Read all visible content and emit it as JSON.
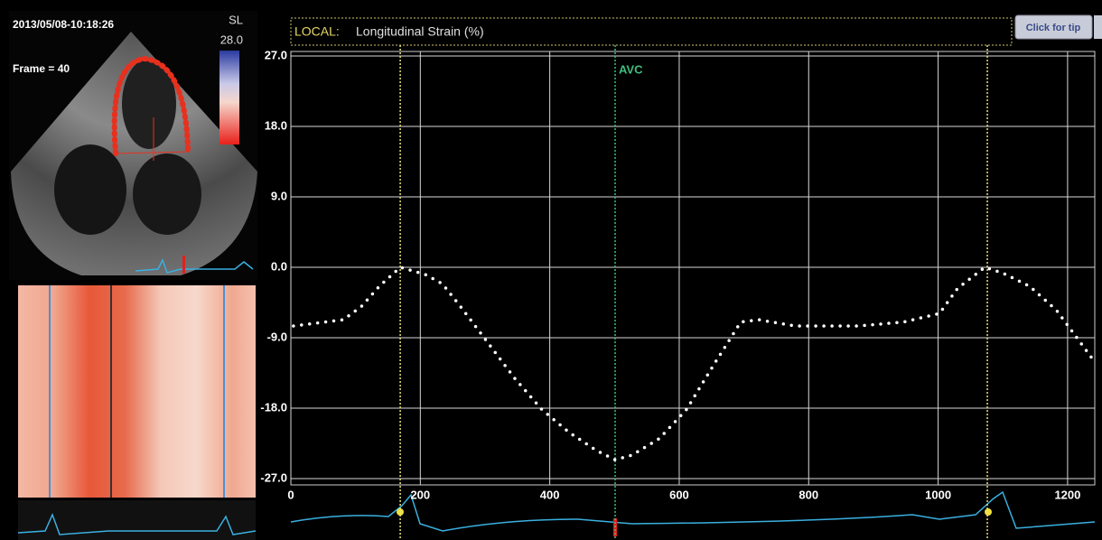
{
  "header": {
    "timestamp": "2013/05/08-10:18:26",
    "frame": "Frame = 40",
    "scale_label": "SL",
    "scale_max": "28.0"
  },
  "button": "Click for tip",
  "chart_data": {
    "type": "line",
    "title_tag": "LOCAL:",
    "title": "Longitudinal Strain (%)",
    "x": [
      4,
      81,
      109,
      137,
      169,
      207,
      234,
      262,
      304,
      346,
      388,
      430,
      472,
      501,
      527,
      569,
      611,
      653,
      695,
      723,
      779,
      876,
      946,
      1002,
      1030,
      1072,
      1099,
      1141,
      1183,
      1242
    ],
    "values": [
      -7.5,
      -6.7,
      -5,
      -2.4,
      0,
      -0.9,
      -2.1,
      -5,
      -9.6,
      -14.2,
      -18.2,
      -21.1,
      -23.4,
      -24.6,
      -24,
      -21.9,
      -18.2,
      -12.5,
      -7,
      -6.7,
      -7.5,
      -7.5,
      -7,
      -5.9,
      -2.7,
      0,
      -0.7,
      -2.4,
      -5.5,
      -12.1
    ],
    "color": "#ffffff",
    "xlim": [
      0,
      1242
    ],
    "ylim": [
      -27,
      27
    ],
    "xticks": [
      0,
      200,
      400,
      600,
      800,
      1000,
      1200
    ],
    "yticks": [
      {
        "value": 27,
        "label": "27.0"
      },
      {
        "value": 18,
        "label": "18.0"
      },
      {
        "value": 9,
        "label": "9.0"
      },
      {
        "value": 0,
        "label": "0.0"
      },
      {
        "value": -9,
        "label": "-9.0"
      },
      {
        "value": -18,
        "label": "-18.0"
      },
      {
        "value": -27,
        "label": "-27.0"
      }
    ],
    "grid": true,
    "markers": [
      {
        "x": 169,
        "color": "#e8e07a"
      },
      {
        "x": 1076,
        "color": "#e8e07a"
      },
      {
        "x": 501,
        "color": "#3fbf7f",
        "label": "AVC"
      }
    ]
  }
}
